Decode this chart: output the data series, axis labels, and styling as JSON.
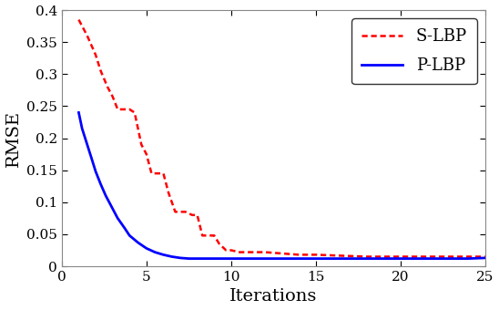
{
  "title": "",
  "xlabel": "Iterations",
  "ylabel": "RMSE",
  "xlim": [
    0,
    25
  ],
  "ylim": [
    0,
    0.4
  ],
  "yticks": [
    0,
    0.05,
    0.1,
    0.15,
    0.2,
    0.25,
    0.3,
    0.35,
    0.4
  ],
  "xticks": [
    0,
    5,
    10,
    15,
    20,
    25
  ],
  "slbp_x": [
    1,
    1.5,
    2,
    2.3,
    2.7,
    3,
    3.3,
    3.7,
    4,
    4.3,
    4.5,
    4.7,
    5,
    5.3,
    5.7,
    6,
    6.3,
    6.7,
    7,
    7.3,
    7.7,
    8,
    8.3,
    8.7,
    9,
    9.3,
    9.7,
    10,
    10.5,
    11,
    12,
    13,
    14,
    15,
    16,
    17,
    18,
    19,
    20,
    21,
    22,
    23,
    24,
    25
  ],
  "slbp_y": [
    0.385,
    0.36,
    0.33,
    0.305,
    0.28,
    0.265,
    0.245,
    0.245,
    0.245,
    0.24,
    0.215,
    0.19,
    0.175,
    0.145,
    0.145,
    0.145,
    0.115,
    0.085,
    0.085,
    0.085,
    0.08,
    0.08,
    0.048,
    0.048,
    0.048,
    0.035,
    0.025,
    0.025,
    0.022,
    0.022,
    0.022,
    0.02,
    0.018,
    0.018,
    0.017,
    0.016,
    0.015,
    0.015,
    0.015,
    0.015,
    0.015,
    0.015,
    0.015,
    0.015
  ],
  "plbp_x": [
    1,
    1.2,
    1.5,
    1.8,
    2,
    2.3,
    2.6,
    3,
    3.3,
    3.7,
    4,
    4.5,
    5,
    5.5,
    6,
    6.5,
    7,
    7.5,
    8,
    9,
    10,
    11,
    12,
    13,
    14,
    15,
    16,
    17,
    18,
    19,
    20,
    21,
    22,
    23,
    24,
    25
  ],
  "plbp_y": [
    0.24,
    0.215,
    0.19,
    0.165,
    0.148,
    0.128,
    0.11,
    0.09,
    0.075,
    0.06,
    0.048,
    0.037,
    0.028,
    0.022,
    0.018,
    0.015,
    0.013,
    0.012,
    0.012,
    0.012,
    0.012,
    0.012,
    0.012,
    0.012,
    0.012,
    0.012,
    0.012,
    0.012,
    0.012,
    0.012,
    0.012,
    0.012,
    0.012,
    0.012,
    0.012,
    0.013
  ],
  "slbp_color": "#ff0000",
  "plbp_color": "#0000ff",
  "slbp_label": "S-LBP",
  "plbp_label": "P-LBP",
  "slbp_linewidth": 1.8,
  "plbp_linewidth": 2.0,
  "legend_fontsize": 13,
  "axis_label_fontsize": 14,
  "tick_fontsize": 11,
  "fig_facecolor": "#ffffff",
  "ax_facecolor": "#ffffff",
  "spine_color": "#888888"
}
